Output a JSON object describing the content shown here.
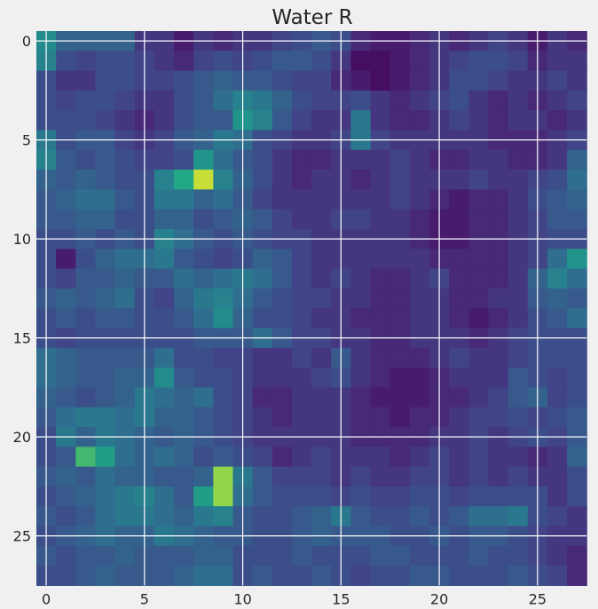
{
  "chart_data": {
    "type": "heatmap",
    "title": "Water R",
    "xlabel": "",
    "ylabel": "",
    "rows": 28,
    "cols": 28,
    "xlim": [
      -0.5,
      27.5
    ],
    "ylim": [
      27.5,
      -0.5
    ],
    "xticks": [
      0,
      5,
      10,
      15,
      20,
      25
    ],
    "yticks": [
      0,
      5,
      10,
      15,
      20,
      25
    ],
    "grid": true,
    "colormap": "viridis",
    "value_range": [
      0,
      1
    ],
    "values": [
      [
        0.6,
        0.4,
        0.4,
        0.4,
        0.4,
        0.2,
        0.2,
        0.1,
        0.2,
        0.15,
        0.2,
        0.2,
        0.25,
        0.3,
        0.35,
        0.3,
        0.15,
        0.1,
        0.1,
        0.15,
        0.2,
        0.15,
        0.2,
        0.25,
        0.2,
        0.1,
        0.2,
        0.15
      ],
      [
        0.55,
        0.3,
        0.25,
        0.3,
        0.3,
        0.25,
        0.2,
        0.15,
        0.25,
        0.3,
        0.25,
        0.3,
        0.35,
        0.35,
        0.3,
        0.2,
        0.05,
        0.05,
        0.1,
        0.15,
        0.2,
        0.25,
        0.3,
        0.3,
        0.25,
        0.15,
        0.2,
        0.2
      ],
      [
        0.3,
        0.2,
        0.2,
        0.3,
        0.3,
        0.25,
        0.25,
        0.3,
        0.35,
        0.4,
        0.35,
        0.35,
        0.3,
        0.25,
        0.25,
        0.15,
        0.1,
        0.05,
        0.1,
        0.15,
        0.2,
        0.3,
        0.3,
        0.25,
        0.2,
        0.2,
        0.25,
        0.2
      ],
      [
        0.3,
        0.25,
        0.3,
        0.3,
        0.25,
        0.2,
        0.2,
        0.3,
        0.35,
        0.45,
        0.55,
        0.5,
        0.4,
        0.3,
        0.25,
        0.25,
        0.3,
        0.2,
        0.15,
        0.2,
        0.25,
        0.3,
        0.2,
        0.15,
        0.2,
        0.15,
        0.2,
        0.25
      ],
      [
        0.3,
        0.3,
        0.3,
        0.25,
        0.2,
        0.15,
        0.2,
        0.3,
        0.35,
        0.35,
        0.65,
        0.55,
        0.35,
        0.25,
        0.2,
        0.2,
        0.5,
        0.2,
        0.15,
        0.15,
        0.2,
        0.25,
        0.2,
        0.15,
        0.2,
        0.2,
        0.15,
        0.2
      ],
      [
        0.5,
        0.3,
        0.35,
        0.35,
        0.25,
        0.2,
        0.25,
        0.35,
        0.4,
        0.5,
        0.45,
        0.3,
        0.25,
        0.2,
        0.2,
        0.25,
        0.5,
        0.25,
        0.2,
        0.2,
        0.2,
        0.2,
        0.2,
        0.15,
        0.15,
        0.15,
        0.2,
        0.25
      ],
      [
        0.55,
        0.35,
        0.3,
        0.35,
        0.3,
        0.25,
        0.25,
        0.3,
        0.65,
        0.45,
        0.35,
        0.3,
        0.2,
        0.15,
        0.15,
        0.2,
        0.2,
        0.2,
        0.25,
        0.2,
        0.15,
        0.15,
        0.2,
        0.2,
        0.15,
        0.15,
        0.2,
        0.4
      ],
      [
        0.4,
        0.35,
        0.4,
        0.35,
        0.3,
        0.3,
        0.55,
        0.75,
        0.95,
        0.55,
        0.4,
        0.3,
        0.2,
        0.15,
        0.2,
        0.2,
        0.15,
        0.2,
        0.25,
        0.2,
        0.2,
        0.2,
        0.25,
        0.2,
        0.2,
        0.25,
        0.3,
        0.45
      ],
      [
        0.35,
        0.4,
        0.45,
        0.45,
        0.35,
        0.3,
        0.5,
        0.5,
        0.4,
        0.45,
        0.35,
        0.25,
        0.2,
        0.2,
        0.2,
        0.2,
        0.2,
        0.2,
        0.25,
        0.2,
        0.15,
        0.1,
        0.15,
        0.15,
        0.2,
        0.3,
        0.35,
        0.4
      ],
      [
        0.35,
        0.35,
        0.4,
        0.4,
        0.3,
        0.3,
        0.4,
        0.4,
        0.3,
        0.35,
        0.4,
        0.35,
        0.25,
        0.2,
        0.2,
        0.25,
        0.25,
        0.2,
        0.2,
        0.15,
        0.1,
        0.1,
        0.15,
        0.15,
        0.2,
        0.25,
        0.35,
        0.35
      ],
      [
        0.3,
        0.3,
        0.35,
        0.3,
        0.35,
        0.3,
        0.55,
        0.45,
        0.35,
        0.3,
        0.35,
        0.3,
        0.25,
        0.25,
        0.2,
        0.2,
        0.2,
        0.2,
        0.2,
        0.15,
        0.1,
        0.1,
        0.15,
        0.15,
        0.2,
        0.25,
        0.3,
        0.3
      ],
      [
        0.3,
        0.1,
        0.3,
        0.4,
        0.45,
        0.45,
        0.5,
        0.35,
        0.3,
        0.25,
        0.3,
        0.4,
        0.35,
        0.25,
        0.2,
        0.2,
        0.2,
        0.2,
        0.2,
        0.2,
        0.15,
        0.15,
        0.15,
        0.15,
        0.2,
        0.25,
        0.45,
        0.65
      ],
      [
        0.3,
        0.25,
        0.35,
        0.35,
        0.4,
        0.35,
        0.35,
        0.45,
        0.4,
        0.45,
        0.5,
        0.45,
        0.35,
        0.25,
        0.2,
        0.25,
        0.2,
        0.15,
        0.15,
        0.2,
        0.25,
        0.15,
        0.15,
        0.15,
        0.2,
        0.4,
        0.55,
        0.45
      ],
      [
        0.35,
        0.4,
        0.35,
        0.4,
        0.45,
        0.3,
        0.25,
        0.4,
        0.5,
        0.55,
        0.45,
        0.35,
        0.3,
        0.25,
        0.25,
        0.2,
        0.2,
        0.15,
        0.15,
        0.2,
        0.2,
        0.15,
        0.15,
        0.2,
        0.2,
        0.35,
        0.4,
        0.35
      ],
      [
        0.3,
        0.35,
        0.3,
        0.35,
        0.35,
        0.3,
        0.3,
        0.35,
        0.45,
        0.6,
        0.4,
        0.3,
        0.3,
        0.25,
        0.2,
        0.2,
        0.15,
        0.15,
        0.15,
        0.2,
        0.2,
        0.15,
        0.1,
        0.15,
        0.2,
        0.3,
        0.35,
        0.45
      ],
      [
        0.3,
        0.25,
        0.3,
        0.3,
        0.3,
        0.3,
        0.3,
        0.3,
        0.35,
        0.35,
        0.35,
        0.45,
        0.35,
        0.25,
        0.25,
        0.2,
        0.2,
        0.15,
        0.15,
        0.2,
        0.2,
        0.2,
        0.15,
        0.2,
        0.25,
        0.3,
        0.3,
        0.3
      ],
      [
        0.45,
        0.4,
        0.35,
        0.35,
        0.35,
        0.35,
        0.45,
        0.3,
        0.3,
        0.25,
        0.25,
        0.2,
        0.2,
        0.25,
        0.2,
        0.35,
        0.2,
        0.15,
        0.15,
        0.15,
        0.2,
        0.25,
        0.2,
        0.2,
        0.25,
        0.3,
        0.3,
        0.3
      ],
      [
        0.45,
        0.4,
        0.35,
        0.35,
        0.4,
        0.4,
        0.6,
        0.35,
        0.3,
        0.3,
        0.25,
        0.2,
        0.2,
        0.2,
        0.25,
        0.3,
        0.2,
        0.15,
        0.1,
        0.1,
        0.15,
        0.2,
        0.2,
        0.2,
        0.35,
        0.3,
        0.25,
        0.3
      ],
      [
        0.4,
        0.35,
        0.3,
        0.35,
        0.4,
        0.5,
        0.45,
        0.4,
        0.45,
        0.3,
        0.25,
        0.15,
        0.15,
        0.2,
        0.2,
        0.2,
        0.15,
        0.1,
        0.1,
        0.1,
        0.15,
        0.15,
        0.2,
        0.25,
        0.35,
        0.4,
        0.25,
        0.3
      ],
      [
        0.35,
        0.45,
        0.5,
        0.5,
        0.45,
        0.5,
        0.4,
        0.4,
        0.35,
        0.3,
        0.25,
        0.2,
        0.15,
        0.2,
        0.2,
        0.2,
        0.15,
        0.15,
        0.1,
        0.15,
        0.15,
        0.2,
        0.25,
        0.25,
        0.3,
        0.25,
        0.3,
        0.35
      ],
      [
        0.3,
        0.5,
        0.4,
        0.5,
        0.45,
        0.4,
        0.35,
        0.4,
        0.35,
        0.3,
        0.25,
        0.2,
        0.2,
        0.2,
        0.2,
        0.2,
        0.15,
        0.15,
        0.15,
        0.15,
        0.2,
        0.2,
        0.25,
        0.2,
        0.25,
        0.3,
        0.25,
        0.35
      ],
      [
        0.3,
        0.35,
        0.8,
        0.7,
        0.45,
        0.4,
        0.45,
        0.4,
        0.3,
        0.35,
        0.3,
        0.25,
        0.15,
        0.2,
        0.25,
        0.2,
        0.2,
        0.2,
        0.15,
        0.2,
        0.25,
        0.2,
        0.25,
        0.2,
        0.2,
        0.15,
        0.2,
        0.4
      ],
      [
        0.35,
        0.4,
        0.35,
        0.45,
        0.4,
        0.4,
        0.35,
        0.35,
        0.4,
        0.9,
        0.5,
        0.35,
        0.25,
        0.25,
        0.25,
        0.2,
        0.25,
        0.2,
        0.2,
        0.25,
        0.25,
        0.2,
        0.25,
        0.2,
        0.25,
        0.2,
        0.2,
        0.3
      ],
      [
        0.3,
        0.35,
        0.4,
        0.45,
        0.5,
        0.55,
        0.45,
        0.35,
        0.7,
        0.9,
        0.45,
        0.35,
        0.3,
        0.3,
        0.3,
        0.25,
        0.3,
        0.25,
        0.25,
        0.3,
        0.3,
        0.25,
        0.3,
        0.3,
        0.3,
        0.3,
        0.2,
        0.3
      ],
      [
        0.35,
        0.3,
        0.35,
        0.45,
        0.5,
        0.5,
        0.45,
        0.4,
        0.5,
        0.55,
        0.35,
        0.3,
        0.3,
        0.35,
        0.4,
        0.5,
        0.35,
        0.3,
        0.3,
        0.35,
        0.3,
        0.35,
        0.45,
        0.45,
        0.5,
        0.3,
        0.25,
        0.2
      ],
      [
        0.3,
        0.35,
        0.4,
        0.45,
        0.4,
        0.4,
        0.5,
        0.45,
        0.4,
        0.35,
        0.35,
        0.3,
        0.3,
        0.35,
        0.4,
        0.35,
        0.35,
        0.35,
        0.3,
        0.3,
        0.35,
        0.3,
        0.35,
        0.35,
        0.3,
        0.25,
        0.2,
        0.2
      ],
      [
        0.35,
        0.3,
        0.35,
        0.35,
        0.4,
        0.35,
        0.35,
        0.35,
        0.4,
        0.4,
        0.3,
        0.3,
        0.3,
        0.35,
        0.3,
        0.3,
        0.3,
        0.35,
        0.35,
        0.3,
        0.3,
        0.3,
        0.35,
        0.3,
        0.3,
        0.25,
        0.2,
        0.15
      ],
      [
        0.3,
        0.3,
        0.35,
        0.4,
        0.35,
        0.35,
        0.35,
        0.4,
        0.45,
        0.45,
        0.3,
        0.35,
        0.3,
        0.3,
        0.35,
        0.3,
        0.25,
        0.3,
        0.3,
        0.35,
        0.35,
        0.3,
        0.3,
        0.3,
        0.35,
        0.3,
        0.25,
        0.15
      ]
    ]
  }
}
